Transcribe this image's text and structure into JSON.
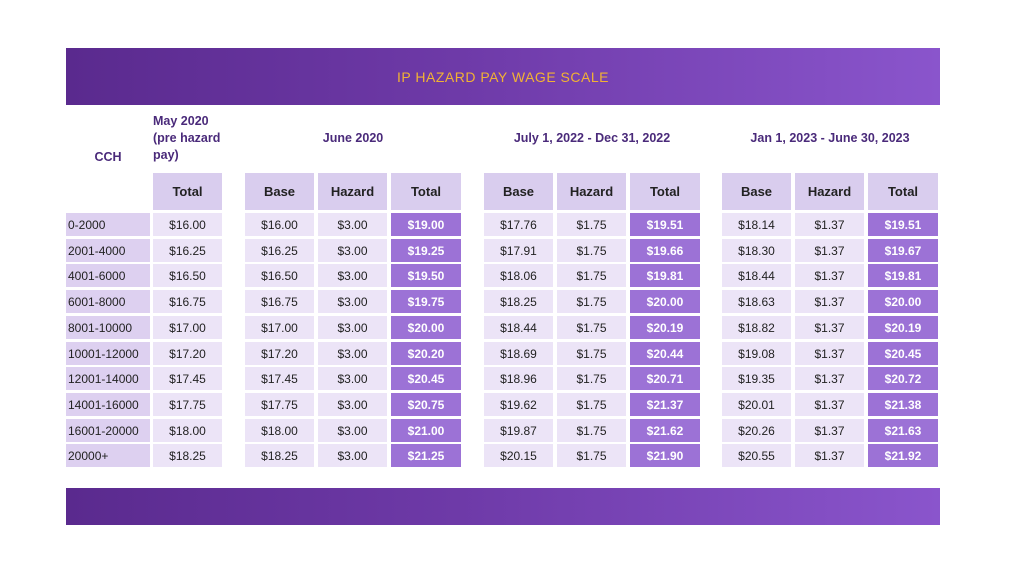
{
  "title": "IP HAZARD PAY WAGE SCALE",
  "headers": {
    "cch": "CCH",
    "may": "May 2020 (pre hazard pay)",
    "groups": [
      "June 2020",
      "July 1, 2022 - Dec 31, 2022",
      "Jan 1, 2023 - June 30, 2023"
    ],
    "may_sub": "Total",
    "sub": [
      "Base",
      "Hazard",
      "Total"
    ]
  },
  "colors": {
    "banner_start": "#5a2a8e",
    "banner_end": "#8a55cc",
    "title": "#f2b233",
    "total_cell": "#9c72d6"
  },
  "rows": [
    [
      "0-2000",
      "$16.00",
      "$16.00",
      "$3.00",
      "$19.00",
      "$17.76",
      "$1.75",
      "$19.51",
      "$18.14",
      "$1.37",
      "$19.51"
    ],
    [
      "2001-4000",
      "$16.25",
      "$16.25",
      "$3.00",
      "$19.25",
      "$17.91",
      "$1.75",
      "$19.66",
      "$18.30",
      "$1.37",
      "$19.67"
    ],
    [
      "4001-6000",
      "$16.50",
      "$16.50",
      "$3.00",
      "$19.50",
      "$18.06",
      "$1.75",
      "$19.81",
      "$18.44",
      "$1.37",
      "$19.81"
    ],
    [
      "6001-8000",
      "$16.75",
      "$16.75",
      "$3.00",
      "$19.75",
      "$18.25",
      "$1.75",
      "$20.00",
      "$18.63",
      "$1.37",
      "$20.00"
    ],
    [
      "8001-10000",
      "$17.00",
      "$17.00",
      "$3.00",
      "$20.00",
      "$18.44",
      "$1.75",
      "$20.19",
      "$18.82",
      "$1.37",
      "$20.19"
    ],
    [
      "10001-12000",
      "$17.20",
      "$17.20",
      "$3.00",
      "$20.20",
      "$18.69",
      "$1.75",
      "$20.44",
      "$19.08",
      "$1.37",
      "$20.45"
    ],
    [
      "12001-14000",
      "$17.45",
      "$17.45",
      "$3.00",
      "$20.45",
      "$18.96",
      "$1.75",
      "$20.71",
      "$19.35",
      "$1.37",
      "$20.72"
    ],
    [
      "14001-16000",
      "$17.75",
      "$17.75",
      "$3.00",
      "$20.75",
      "$19.62",
      "$1.75",
      "$21.37",
      "$20.01",
      "$1.37",
      "$21.38"
    ],
    [
      "16001-20000",
      "$18.00",
      "$18.00",
      "$3.00",
      "$21.00",
      "$19.87",
      "$1.75",
      "$21.62",
      "$20.26",
      "$1.37",
      "$21.63"
    ],
    [
      "20000+",
      "$18.25",
      "$18.25",
      "$3.00",
      "$21.25",
      "$20.15",
      "$1.75",
      "$21.90",
      "$20.55",
      "$1.37",
      "$21.92"
    ]
  ]
}
